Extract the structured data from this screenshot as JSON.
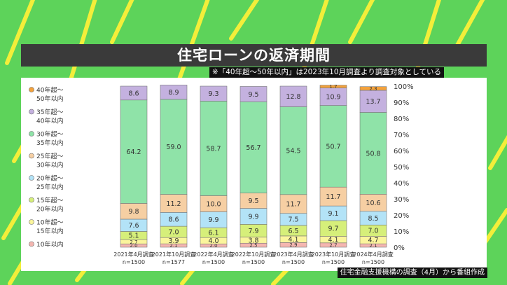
{
  "title": "住宅ローンの返済期間",
  "note": "※「40年超～50年以内」は2023年10月調査より調査対象としている",
  "source": "住宅金融支援機構の調査（4月）から番組作成",
  "chart_data": {
    "type": "bar",
    "stacked": true,
    "ylim": [
      0,
      100
    ],
    "y_ticks": [
      "0%",
      "10%",
      "20%",
      "30%",
      "40%",
      "50%",
      "60%",
      "70%",
      "80%",
      "90%",
      "100%"
    ],
    "categories": [
      {
        "label": "2021年4月調査",
        "n": "n=1500"
      },
      {
        "label": "2021年10月調査",
        "n": "n=1577"
      },
      {
        "label": "2022年4月調査",
        "n": "n=1500"
      },
      {
        "label": "2022年10月調査",
        "n": "n=1500"
      },
      {
        "label": "2023年4月調査",
        "n": "n=1500"
      },
      {
        "label": "2023年10月調査",
        "n": "n=1500"
      },
      {
        "label": "2024年4月調査",
        "n": "n=1500"
      }
    ],
    "series": [
      {
        "name": "10年以内",
        "color": "#f4b6b0",
        "values": [
          2.0,
          2.1,
          2.0,
          2.5,
          2.9,
          2.7,
          2.1
        ],
        "labels": [
          "2.0",
          "2.1",
          "2.0",
          "2.5",
          "2.9",
          "2.7",
          "2.1"
        ]
      },
      {
        "name": "10年超～15年以内",
        "color": "#fbf59c",
        "values": [
          2.7,
          3.9,
          4.0,
          3.8,
          4.1,
          4.1,
          4.7
        ],
        "labels": [
          "2.7",
          "3.9",
          "4.0",
          "3.8",
          "4.1",
          "4.1",
          "4.7"
        ]
      },
      {
        "name": "15年超～20年以内",
        "color": "#d6ef7a",
        "values": [
          5.1,
          7.0,
          6.1,
          7.9,
          6.5,
          9.7,
          7.0
        ],
        "labels": [
          "5.1",
          "7.0",
          "6.1",
          "7.9",
          "6.5",
          "9.7",
          "7.0"
        ]
      },
      {
        "name": "20年超～25年以内",
        "color": "#b3e3f7",
        "values": [
          7.6,
          8.6,
          9.9,
          9.9,
          7.5,
          9.1,
          8.5
        ],
        "labels": [
          "7.6",
          "8.6",
          "9.9",
          "9.9",
          "7.5",
          "9.1",
          "8.5"
        ]
      },
      {
        "name": "25年超～30年以内",
        "color": "#f6cfa3",
        "values": [
          9.8,
          11.2,
          10.0,
          9.5,
          11.7,
          11.7,
          10.6
        ],
        "labels": [
          "9.8",
          "11.2",
          "10.0",
          "9.5",
          "11.7",
          "11.7",
          "10.6"
        ]
      },
      {
        "name": "30年超～35年以内",
        "color": "#8fe3a8",
        "values": [
          64.2,
          59.0,
          58.7,
          56.7,
          54.5,
          50.7,
          50.8
        ],
        "labels": [
          "64.2",
          "59.0",
          "58.7",
          "56.7",
          "54.5",
          "50.7",
          "50.8"
        ]
      },
      {
        "name": "35年超～40年以内",
        "color": "#c4b1df",
        "values": [
          8.6,
          8.9,
          9.3,
          9.5,
          12.8,
          10.9,
          13.7
        ],
        "labels": [
          "8.6",
          "8.9",
          "9.3",
          "9.5",
          "12.8",
          "10.9",
          "13.7"
        ]
      },
      {
        "name": "40年超～50年以内",
        "color": "#f4a23c",
        "values": [
          0,
          0,
          0,
          0,
          0,
          1.7,
          2.3
        ],
        "labels": [
          "",
          "",
          "",
          "",
          "",
          "1.7",
          "2.3"
        ]
      }
    ],
    "legend": [
      {
        "line1": "40年超～",
        "line2": "50年以内",
        "color": "#f4a23c"
      },
      {
        "line1": "35年超～",
        "line2": "40年以内",
        "color": "#c4b1df"
      },
      {
        "line1": "30年超～",
        "line2": "35年以内",
        "color": "#8fe3a8"
      },
      {
        "line1": "25年超～",
        "line2": "30年以内",
        "color": "#f6cfa3"
      },
      {
        "line1": "20年超～",
        "line2": "25年以内",
        "color": "#b3e3f7"
      },
      {
        "line1": "15年超～",
        "line2": "20年以内",
        "color": "#d6ef7a"
      },
      {
        "line1": "10年超～",
        "line2": "15年以内",
        "color": "#fbf59c"
      },
      {
        "line1": "10年以内",
        "line2": "",
        "color": "#f4b6b0"
      }
    ],
    "legend_position": "left",
    "grid": false
  }
}
